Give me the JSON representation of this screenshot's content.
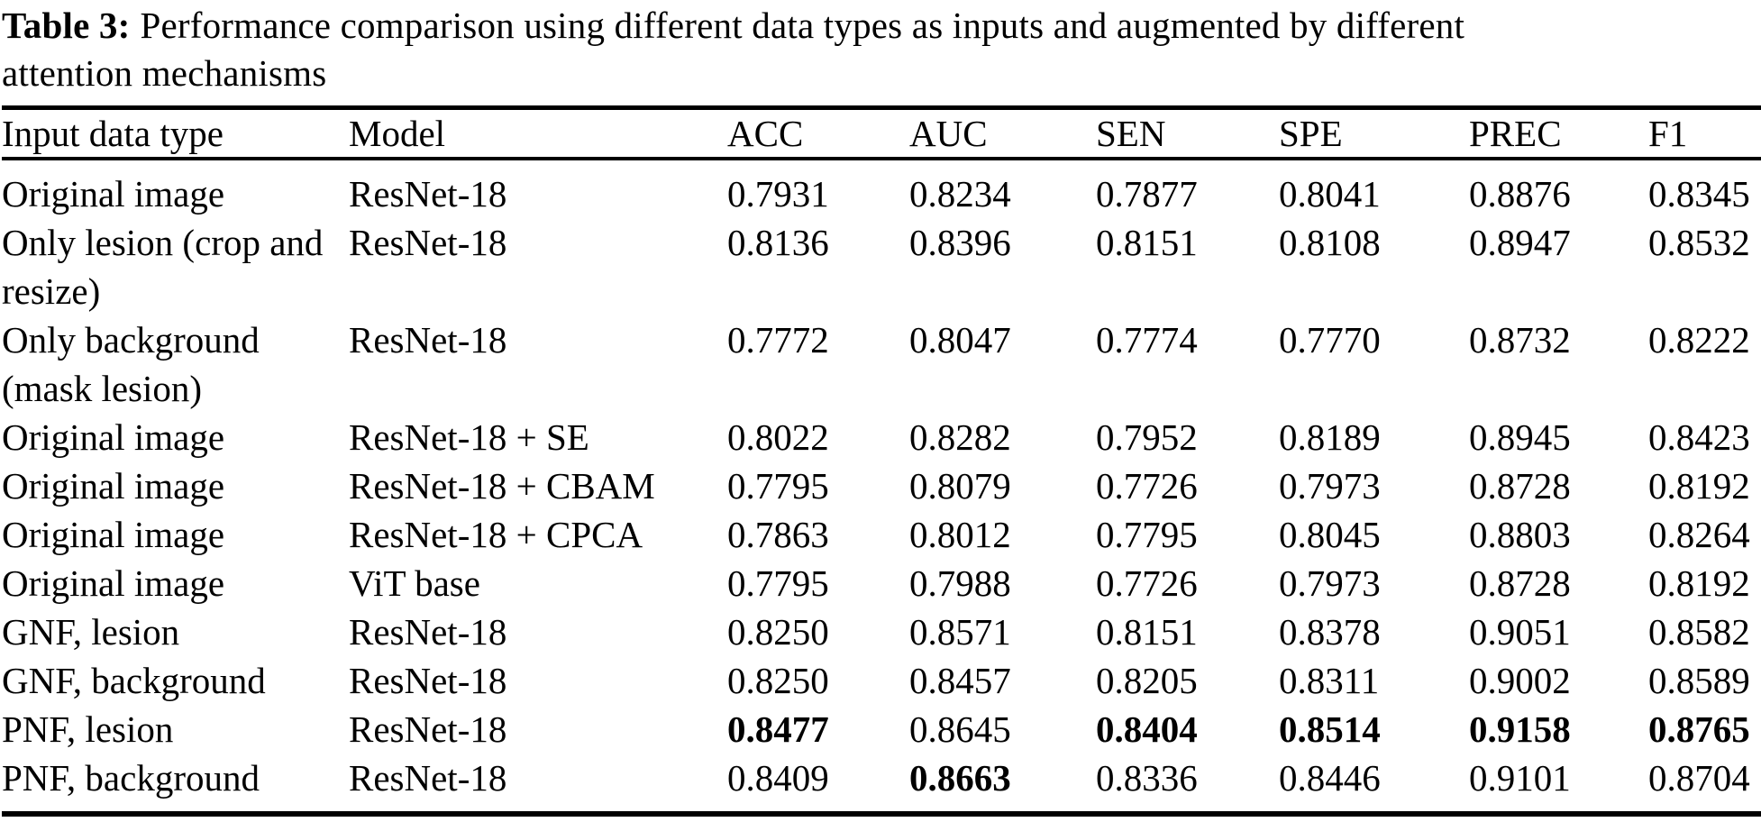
{
  "page": {
    "background_color": "#ffffff",
    "text_color": "#000000"
  },
  "caption": {
    "label": "Table 3:",
    "text_line1": "Performance comparison using different data types as inputs and augmented by different",
    "text_line2": "attention mechanisms"
  },
  "table": {
    "columns": [
      "Input data type",
      "Model",
      "ACC",
      "AUC",
      "SEN",
      "SPE",
      "PREC",
      "F1"
    ],
    "rows": [
      {
        "input": "Original image",
        "model": "ResNet-18",
        "values": [
          "0.7931",
          "0.8234",
          "0.7877",
          "0.8041",
          "0.8876",
          "0.8345"
        ],
        "bold": []
      },
      {
        "input": "Only lesion (crop and resize)",
        "model": "ResNet-18",
        "values": [
          "0.8136",
          "0.8396",
          "0.8151",
          "0.8108",
          "0.8947",
          "0.8532"
        ],
        "bold": []
      },
      {
        "input": "Only background (mask lesion)",
        "model": "ResNet-18",
        "values": [
          "0.7772",
          "0.8047",
          "0.7774",
          "0.7770",
          "0.8732",
          "0.8222"
        ],
        "bold": []
      },
      {
        "input": "Original image",
        "model": "ResNet-18 + SE",
        "values": [
          "0.8022",
          "0.8282",
          "0.7952",
          "0.8189",
          "0.8945",
          "0.8423"
        ],
        "bold": []
      },
      {
        "input": "Original image",
        "model": "ResNet-18 + CBAM",
        "values": [
          "0.7795",
          "0.8079",
          "0.7726",
          "0.7973",
          "0.8728",
          "0.8192"
        ],
        "bold": []
      },
      {
        "input": "Original image",
        "model": "ResNet-18 + CPCA",
        "values": [
          "0.7863",
          "0.8012",
          "0.7795",
          "0.8045",
          "0.8803",
          "0.8264"
        ],
        "bold": []
      },
      {
        "input": "Original image",
        "model": "ViT base",
        "values": [
          "0.7795",
          "0.7988",
          "0.7726",
          "0.7973",
          "0.8728",
          "0.8192"
        ],
        "bold": []
      },
      {
        "input": "GNF, lesion",
        "model": "ResNet-18",
        "values": [
          "0.8250",
          "0.8571",
          "0.8151",
          "0.8378",
          "0.9051",
          "0.8582"
        ],
        "bold": []
      },
      {
        "input": "GNF, background",
        "model": "ResNet-18",
        "values": [
          "0.8250",
          "0.8457",
          "0.8205",
          "0.8311",
          "0.9002",
          "0.8589"
        ],
        "bold": []
      },
      {
        "input": "PNF, lesion",
        "model": "ResNet-18",
        "values": [
          "0.8477",
          "0.8645",
          "0.8404",
          "0.8514",
          "0.9158",
          "0.8765"
        ],
        "bold": [
          0,
          2,
          3,
          4,
          5
        ]
      },
      {
        "input": "PNF, background",
        "model": "ResNet-18",
        "values": [
          "0.8409",
          "0.8663",
          "0.8336",
          "0.8446",
          "0.9101",
          "0.8704"
        ],
        "bold": [
          1
        ]
      }
    ]
  }
}
